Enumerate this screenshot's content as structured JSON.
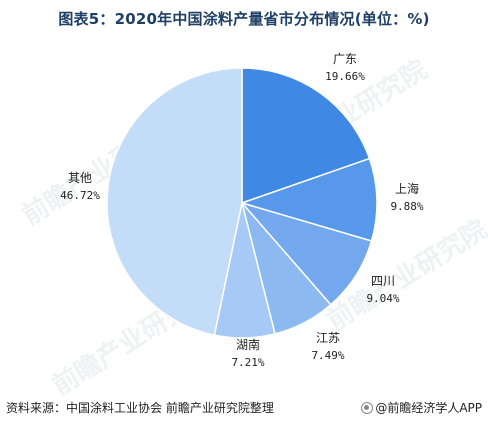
{
  "title": "图表5：2020年中国涂料产量省市分布情况(单位：%)",
  "source": "资料来源：中国涂料工业协会 前瞻产业研究院整理",
  "credit": "@前瞻经济学人APP",
  "credit_icon": "logo-icon",
  "watermark": "前瞻产业研究院",
  "chart_data": {
    "type": "pie",
    "title": "图表5：2020年中国涂料产量省市分布情况(单位：%)",
    "slices": [
      {
        "label": "广东",
        "value": 19.66,
        "display": "19.66%",
        "color": "#3f88e3"
      },
      {
        "label": "上海",
        "value": 9.88,
        "display": "9.88%",
        "color": "#5898ea"
      },
      {
        "label": "四川",
        "value": 9.04,
        "display": "9.04%",
        "color": "#73a8ee"
      },
      {
        "label": "江苏",
        "value": 7.49,
        "display": "7.49%",
        "color": "#8db9f1"
      },
      {
        "label": "湖南",
        "value": 7.21,
        "display": "7.21%",
        "color": "#a6c9f5"
      },
      {
        "label": "其他",
        "value": 46.72,
        "display": "46.72%",
        "color": "#c3dcf8"
      }
    ],
    "start": "12 o'clock",
    "direction": "clockwise",
    "legend": "none"
  }
}
